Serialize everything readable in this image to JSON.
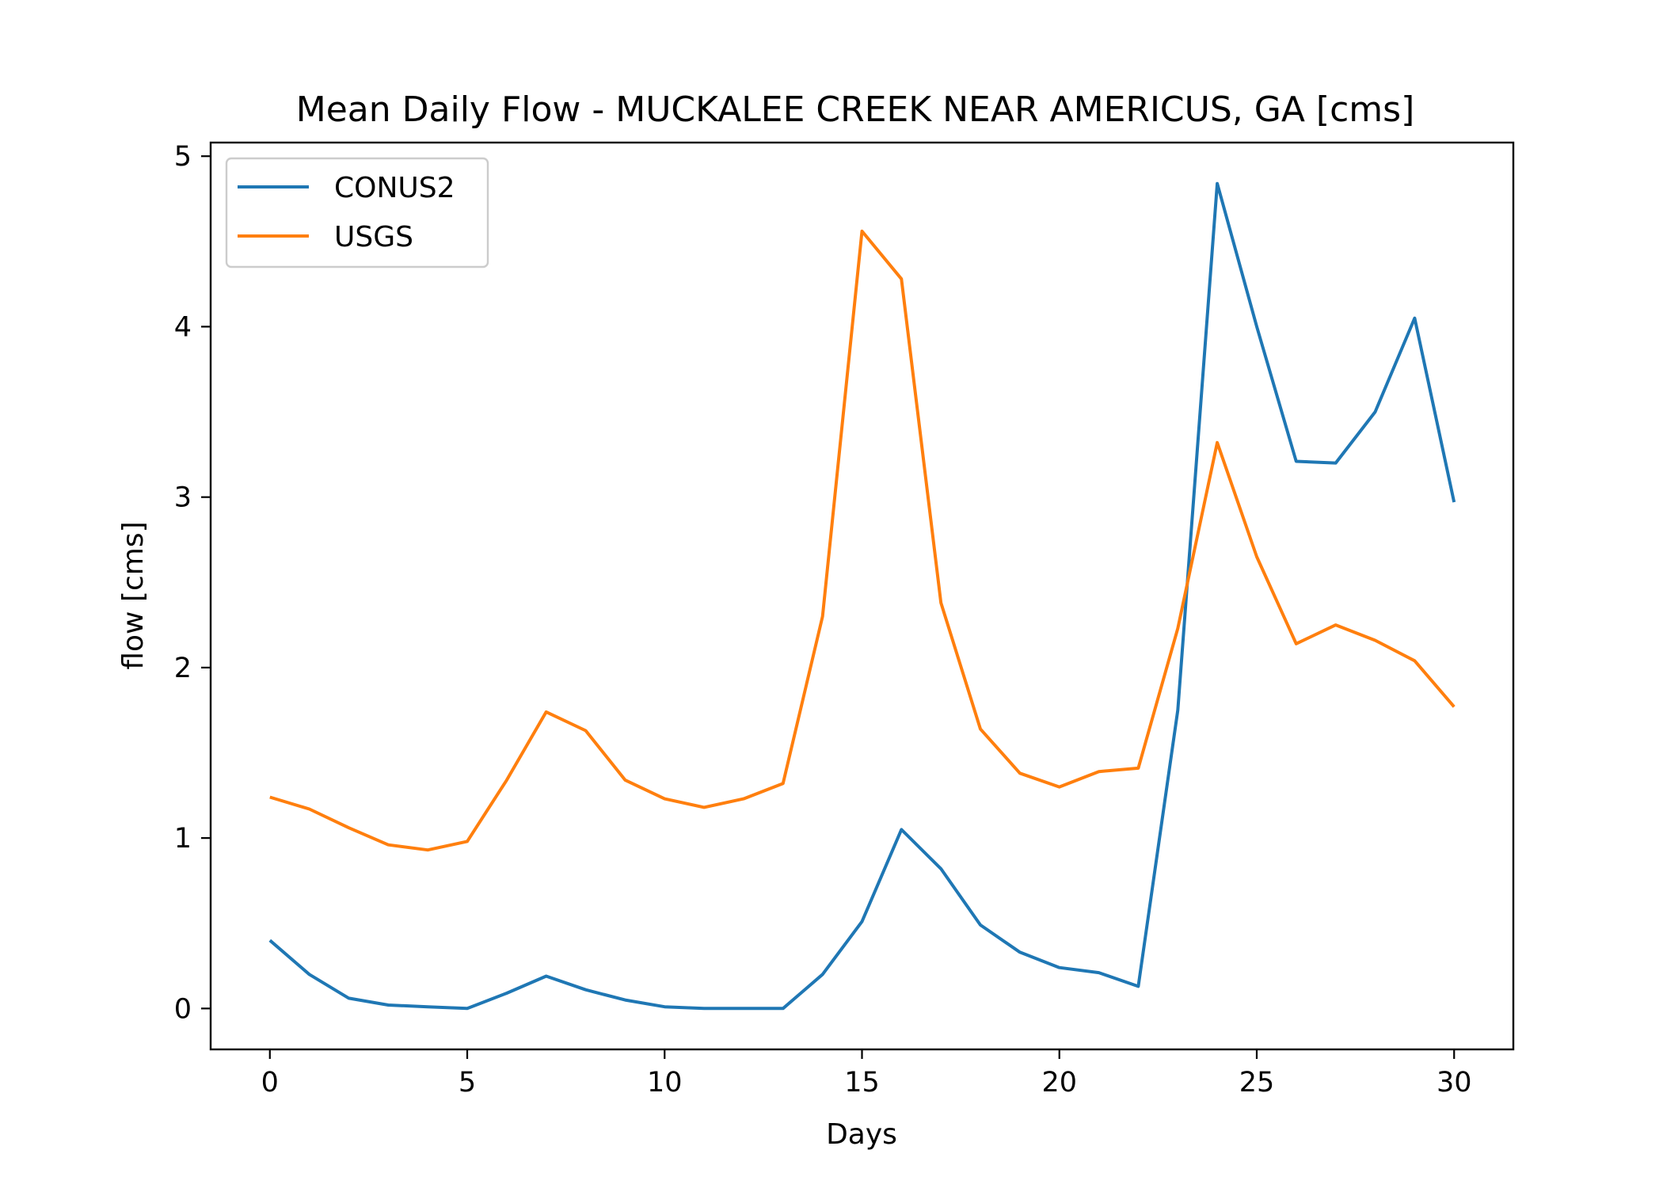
{
  "chart_data": {
    "type": "line",
    "title": "Mean Daily Flow - MUCKALEE CREEK NEAR AMERICUS, GA [cms]",
    "xlabel": "Days",
    "ylabel": "flow [cms]",
    "xlim": [
      -1.5,
      31.5
    ],
    "ylim": [
      -0.24,
      5.08
    ],
    "xticks": [
      0,
      5,
      10,
      15,
      20,
      25,
      30
    ],
    "yticks": [
      0,
      1,
      2,
      3,
      4,
      5
    ],
    "grid": false,
    "legend_position": "upper-left",
    "x": [
      0,
      1,
      2,
      3,
      4,
      5,
      6,
      7,
      8,
      9,
      10,
      11,
      12,
      13,
      14,
      15,
      16,
      17,
      18,
      19,
      20,
      21,
      22,
      23,
      24,
      25,
      26,
      27,
      28,
      29,
      30
    ],
    "series": [
      {
        "name": "CONUS2",
        "color": "#1f77b4",
        "values": [
          0.4,
          0.2,
          0.06,
          0.02,
          0.01,
          0.0,
          0.09,
          0.19,
          0.11,
          0.05,
          0.01,
          0.0,
          0.0,
          0.0,
          0.2,
          0.51,
          1.05,
          0.82,
          0.49,
          0.33,
          0.24,
          0.21,
          0.13,
          1.75,
          4.84,
          4.0,
          3.21,
          3.2,
          3.5,
          4.05,
          2.97
        ]
      },
      {
        "name": "USGS",
        "color": "#ff7f0e",
        "values": [
          1.24,
          1.17,
          1.06,
          0.96,
          0.93,
          0.98,
          1.34,
          1.74,
          1.63,
          1.34,
          1.23,
          1.18,
          1.23,
          1.32,
          2.3,
          4.56,
          4.28,
          2.38,
          1.64,
          1.38,
          1.3,
          1.39,
          1.41,
          2.23,
          3.32,
          2.65,
          2.14,
          2.25,
          2.16,
          2.04,
          1.77
        ]
      }
    ]
  }
}
